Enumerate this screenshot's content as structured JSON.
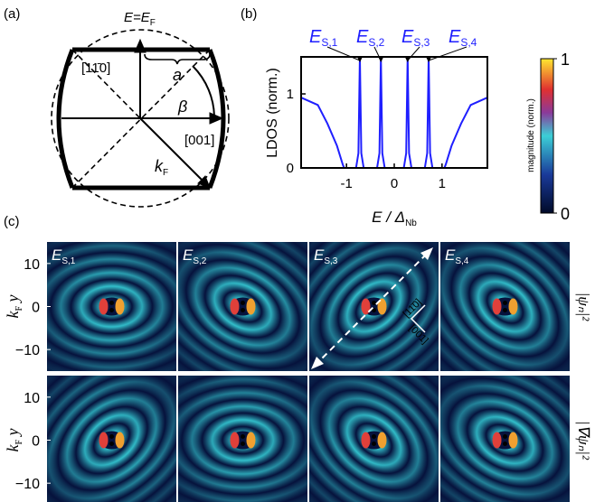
{
  "panel_a": {
    "label": "(a)",
    "fermi": {
      "main": "E=E",
      "sub": "F"
    },
    "direction_1": "[11̄0]",
    "a": "a",
    "beta": "β",
    "direction_2": "[001]",
    "k": {
      "main": "k",
      "sub": "F"
    }
  },
  "chart_data": {
    "type": "line",
    "label": "(b)",
    "x": [
      -1.95,
      -1.6,
      -1.4,
      -1.2,
      -1.08,
      -1.05,
      -0.8,
      -0.75,
      -0.72,
      -0.69,
      -0.64,
      -0.36,
      -0.31,
      -0.28,
      -0.25,
      -0.2,
      0.2,
      0.25,
      0.28,
      0.31,
      0.36,
      0.64,
      0.69,
      0.72,
      0.75,
      0.8,
      1.05,
      1.08,
      1.2,
      1.4,
      1.6,
      1.95
    ],
    "values": [
      0.95,
      0.85,
      0.6,
      0.3,
      0.05,
      0,
      0,
      0.2,
      1.5,
      0.2,
      0,
      0,
      0.2,
      1.5,
      0.2,
      0,
      0,
      0.2,
      1.5,
      0.2,
      0,
      0,
      0.2,
      1.5,
      0.2,
      0,
      0,
      0.05,
      0.3,
      0.6,
      0.85,
      0.95
    ],
    "color": "#1f1fff",
    "xlim": [
      -1.95,
      1.95
    ],
    "ylim": [
      0,
      1.5
    ],
    "xticks": [
      -1,
      0,
      1
    ],
    "yticks": [
      0,
      1
    ],
    "xlabel": {
      "main": "E / Δ",
      "sub": "Nb"
    },
    "ylabel": "LDOS (norm.)",
    "annotations": [
      {
        "main": "E",
        "sub": "S,1",
        "x": -0.72
      },
      {
        "main": "E",
        "sub": "S,2",
        "x": -0.28
      },
      {
        "main": "E",
        "sub": "S,3",
        "x": 0.28
      },
      {
        "main": "E",
        "sub": "S,4",
        "x": 0.72
      }
    ]
  },
  "colorbar": {
    "label": "magnitude (norm.)",
    "clim": [
      0,
      1
    ],
    "ticks": [
      0,
      1
    ]
  },
  "panel_c": {
    "label": "(c)",
    "ylabel": {
      "main": "k",
      "sub": "F",
      "rest": " y"
    },
    "ylim": [
      -15,
      15
    ],
    "yticks": [
      10,
      0,
      {
        "value": -10,
        "label": "−10"
      }
    ],
    "rows": [
      "|ψₙ|²",
      "|∇ψₙ|²"
    ],
    "states": [
      {
        "main": "E",
        "sub": "S,1"
      },
      {
        "main": "E",
        "sub": "S,2"
      },
      {
        "main": "E",
        "sub": "S,3"
      },
      {
        "main": "E",
        "sub": "S,4"
      }
    ],
    "directions": [
      "[11̄0]",
      "[001]"
    ]
  }
}
